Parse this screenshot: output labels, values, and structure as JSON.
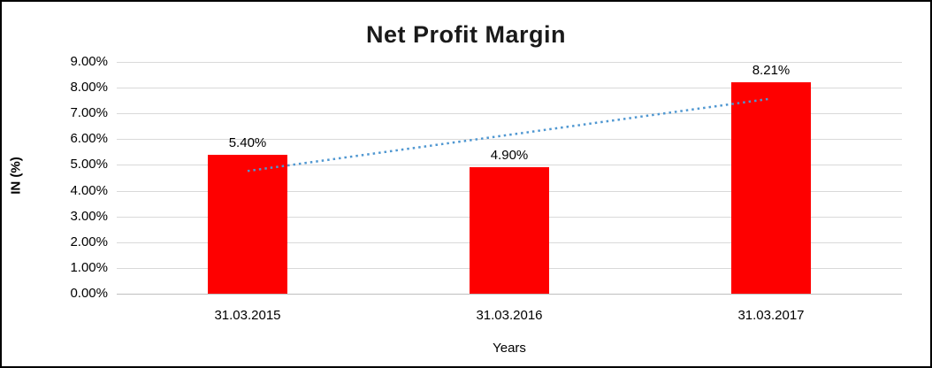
{
  "chart_data": {
    "type": "bar",
    "title": "Net Profit Margin",
    "xlabel": "Years",
    "ylabel": "IN (%)",
    "categories": [
      "31.03.2015",
      "31.03.2016",
      "31.03.2017"
    ],
    "values": [
      5.4,
      4.9,
      8.21
    ],
    "data_labels": [
      "5.40%",
      "4.90%",
      "8.21%"
    ],
    "ylim": [
      0,
      9
    ],
    "ytick_step": 1,
    "ytick_labels": [
      "0.00%",
      "1.00%",
      "2.00%",
      "3.00%",
      "4.00%",
      "5.00%",
      "6.00%",
      "7.00%",
      "8.00%",
      "9.00%"
    ],
    "grid": true,
    "legend": "none",
    "bar_color": "#fe0000",
    "gridline_color": "#d9d9d9",
    "trendline": {
      "style": "dotted",
      "color": "#4f97d1"
    }
  }
}
